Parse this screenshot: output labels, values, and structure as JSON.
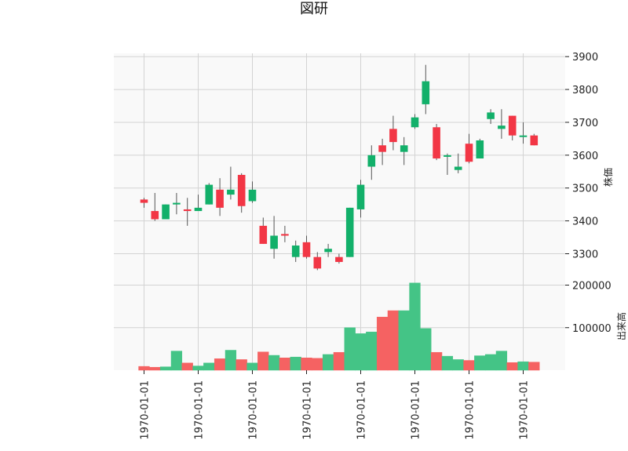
{
  "chart_data": {
    "type": "candlestick",
    "title": "図研",
    "price_axis": {
      "label": "株価",
      "ylim": [
        3220,
        3910
      ],
      "ticks": [
        3300,
        3400,
        3500,
        3600,
        3700,
        3800,
        3900
      ],
      "tick_labels": [
        "3300",
        "3400",
        "3500",
        "3600",
        "3700",
        "3800",
        "3900"
      ],
      "position": "right"
    },
    "volume_axis": {
      "label": "出来高",
      "ylim": [
        0,
        212000
      ],
      "ticks": [
        100000,
        200000
      ],
      "tick_labels": [
        "100000",
        "200000"
      ],
      "position": "right"
    },
    "x_tick_labels": [
      "1970-01-01",
      "1970-01-01",
      "1970-01-01",
      "1970-01-01",
      "1970-01-01",
      "1970-01-01",
      "1970-01-01",
      "1970-01-01"
    ],
    "x_tick_indices": [
      0,
      5,
      10,
      15,
      20,
      25,
      30,
      35
    ],
    "grid": true,
    "up_color": "#12b06a",
    "down_color": "#f23645",
    "volume_up_color": "#44c486",
    "volume_down_color": "#f56262",
    "candles": [
      {
        "open": 3465,
        "high": 3470,
        "low": 3440,
        "close": 3455,
        "volume": 9000
      },
      {
        "open": 3430,
        "high": 3485,
        "low": 3400,
        "close": 3405,
        "volume": 7000
      },
      {
        "open": 3405,
        "high": 3450,
        "low": 3405,
        "close": 3450,
        "volume": 8000
      },
      {
        "open": 3450,
        "high": 3485,
        "low": 3420,
        "close": 3455,
        "volume": 45000
      },
      {
        "open": 3435,
        "high": 3470,
        "low": 3385,
        "close": 3430,
        "volume": 17000
      },
      {
        "open": 3430,
        "high": 3480,
        "low": 3430,
        "close": 3440,
        "volume": 10000
      },
      {
        "open": 3450,
        "high": 3515,
        "low": 3450,
        "close": 3510,
        "volume": 17000
      },
      {
        "open": 3495,
        "high": 3530,
        "low": 3415,
        "close": 3440,
        "volume": 27000
      },
      {
        "open": 3480,
        "high": 3565,
        "low": 3465,
        "close": 3495,
        "volume": 47000
      },
      {
        "open": 3540,
        "high": 3545,
        "low": 3425,
        "close": 3445,
        "volume": 25000
      },
      {
        "open": 3460,
        "high": 3520,
        "low": 3455,
        "close": 3495,
        "volume": 17000
      },
      {
        "open": 3385,
        "high": 3410,
        "low": 3330,
        "close": 3330,
        "volume": 43000
      },
      {
        "open": 3315,
        "high": 3415,
        "low": 3285,
        "close": 3355,
        "volume": 35000
      },
      {
        "open": 3360,
        "high": 3385,
        "low": 3335,
        "close": 3355,
        "volume": 29000
      },
      {
        "open": 3290,
        "high": 3340,
        "low": 3275,
        "close": 3325,
        "volume": 31000
      },
      {
        "open": 3335,
        "high": 3355,
        "low": 3285,
        "close": 3290,
        "volume": 29000
      },
      {
        "open": 3290,
        "high": 3305,
        "low": 3250,
        "close": 3255,
        "volume": 28000
      },
      {
        "open": 3305,
        "high": 3330,
        "low": 3290,
        "close": 3315,
        "volume": 37000
      },
      {
        "open": 3290,
        "high": 3300,
        "low": 3270,
        "close": 3275,
        "volume": 42000
      },
      {
        "open": 3290,
        "high": 3440,
        "low": 3290,
        "close": 3440,
        "volume": 100000
      },
      {
        "open": 3435,
        "high": 3525,
        "low": 3410,
        "close": 3510,
        "volume": 86000
      },
      {
        "open": 3565,
        "high": 3630,
        "low": 3525,
        "close": 3600,
        "volume": 90000
      },
      {
        "open": 3630,
        "high": 3650,
        "low": 3570,
        "close": 3610,
        "volume": 125000
      },
      {
        "open": 3680,
        "high": 3720,
        "low": 3615,
        "close": 3640,
        "volume": 140000
      },
      {
        "open": 3610,
        "high": 3655,
        "low": 3570,
        "close": 3630,
        "volume": 140000
      },
      {
        "open": 3685,
        "high": 3725,
        "low": 3680,
        "close": 3715,
        "volume": 205000
      },
      {
        "open": 3755,
        "high": 3875,
        "low": 3725,
        "close": 3825,
        "volume": 98000
      },
      {
        "open": 3685,
        "high": 3695,
        "low": 3585,
        "close": 3590,
        "volume": 42000
      },
      {
        "open": 3595,
        "high": 3605,
        "low": 3540,
        "close": 3600,
        "volume": 33000
      },
      {
        "open": 3555,
        "high": 3605,
        "low": 3545,
        "close": 3565,
        "volume": 25000
      },
      {
        "open": 3635,
        "high": 3665,
        "low": 3575,
        "close": 3580,
        "volume": 23000
      },
      {
        "open": 3590,
        "high": 3650,
        "low": 3590,
        "close": 3645,
        "volume": 34000
      },
      {
        "open": 3710,
        "high": 3740,
        "low": 3695,
        "close": 3730,
        "volume": 37000
      },
      {
        "open": 3680,
        "high": 3740,
        "low": 3650,
        "close": 3690,
        "volume": 45000
      },
      {
        "open": 3720,
        "high": 3720,
        "low": 3645,
        "close": 3660,
        "volume": 18000
      },
      {
        "open": 3660,
        "high": 3700,
        "low": 3635,
        "close": 3660,
        "volume": 20000
      },
      {
        "open": 3660,
        "high": 3665,
        "low": 3630,
        "close": 3630,
        "volume": 19000
      }
    ]
  }
}
